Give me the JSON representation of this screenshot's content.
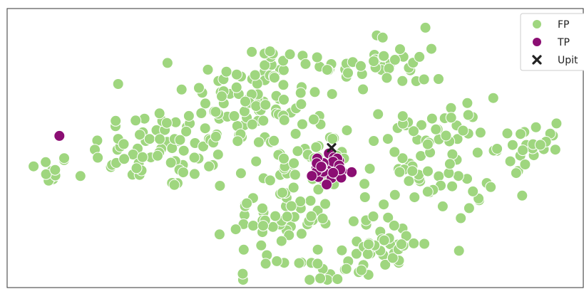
{
  "chart_data": {
    "type": "scatter",
    "title": "",
    "xlabel": "",
    "ylabel": "",
    "grid": false,
    "legend": {
      "position": "top-right",
      "entries": [
        "FP",
        "TP",
        "Upit"
      ]
    },
    "colors": {
      "FP": "#9fd67f",
      "TP": "#8b0e73",
      "Upit": "#222222",
      "point_edge": "#ffffff"
    },
    "xlim": [
      0,
      100
    ],
    "ylim": [
      0,
      100
    ],
    "series": [
      {
        "name": "FP",
        "marker": "circle",
        "clusters": [
          {
            "cx": 6.5,
            "cy": 42,
            "sx": 2.0,
            "sy": 3.0,
            "n": 12
          },
          {
            "cx": 27,
            "cy": 50,
            "sx": 6.5,
            "sy": 8,
            "n": 70
          },
          {
            "cx": 43,
            "cy": 69,
            "sx": 6,
            "sy": 12,
            "n": 95
          },
          {
            "cx": 48,
            "cy": 26,
            "sx": 4.5,
            "sy": 10,
            "n": 65
          },
          {
            "cx": 54,
            "cy": 4,
            "sx": 3.2,
            "sy": 3,
            "n": 16
          },
          {
            "cx": 66,
            "cy": 82,
            "sx": 5.5,
            "sy": 6,
            "n": 40
          },
          {
            "cx": 66,
            "cy": 14,
            "sx": 3.5,
            "sy": 5,
            "n": 38
          },
          {
            "cx": 74,
            "cy": 46,
            "sx": 6,
            "sy": 12,
            "n": 80
          },
          {
            "cx": 92.5,
            "cy": 51,
            "sx": 3,
            "sy": 4,
            "n": 24
          },
          {
            "cx": 50,
            "cy": 43,
            "sx": 4,
            "sy": 3,
            "n": 14
          },
          {
            "cx": 56,
            "cy": 52,
            "sx": 3.5,
            "sy": 5,
            "n": 18
          }
        ]
      },
      {
        "name": "TP",
        "marker": "circle",
        "clusters": [
          {
            "cx": 56.5,
            "cy": 42,
            "sx": 2.2,
            "sy": 3.2,
            "n": 32
          }
        ],
        "points": [
          {
            "x": 8.3,
            "y": 55
          }
        ]
      },
      {
        "name": "Upit",
        "marker": "x",
        "points": [
          {
            "x": 56.8,
            "y": 50.5
          }
        ]
      }
    ]
  }
}
